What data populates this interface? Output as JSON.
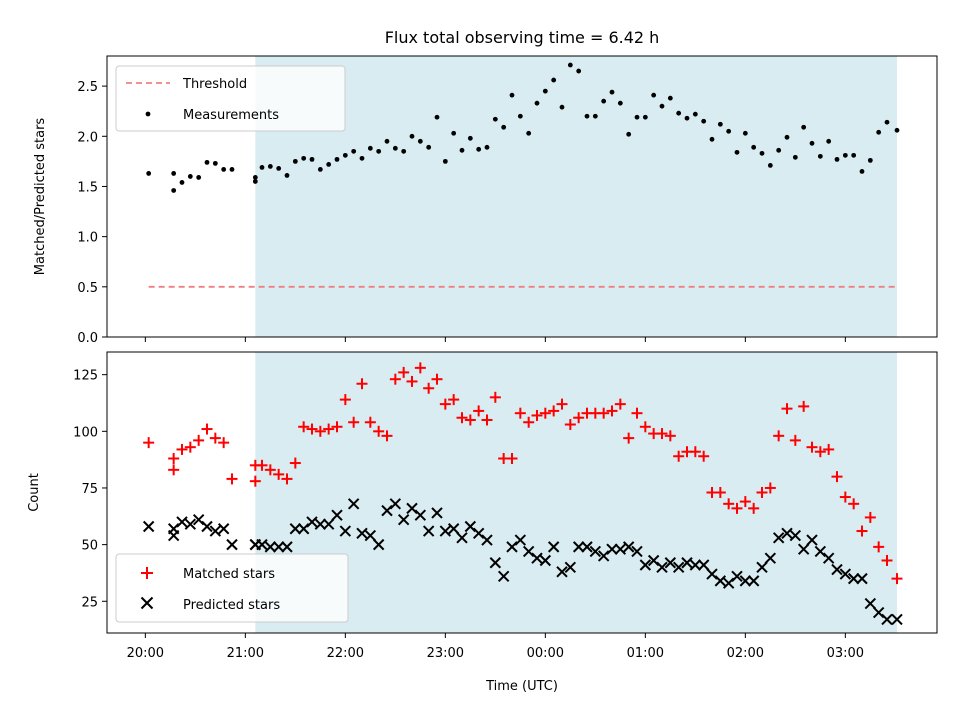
{
  "chart_data": [
    {
      "type": "scatter",
      "title": "Flux total observing time = 6.42 h",
      "ylabel": "Matched/Predicted stars",
      "xlim": [
        "19:37",
        "03:55"
      ],
      "ylim": [
        0,
        2.8
      ],
      "yticks": [
        0.0,
        0.5,
        1.0,
        1.5,
        2.0,
        2.5
      ],
      "ytick_labels": [
        "0.0",
        "0.5",
        "1.0",
        "1.5",
        "2.0",
        "2.5"
      ],
      "shaded_span": {
        "start": "21:06",
        "end": "03:31",
        "color": "#d4eaf0"
      },
      "legend": {
        "position": "upper-left",
        "entries": [
          "Threshold",
          "Measurements"
        ]
      },
      "series": [
        {
          "name": "Threshold",
          "style": "dashed-line",
          "color": "#f08080",
          "x": [
            "20:02",
            "03:31"
          ],
          "y": [
            0.5,
            0.5
          ]
        },
        {
          "name": "Measurements",
          "style": "dot",
          "color": "#000000",
          "x": [
            "20:02",
            "20:17",
            "20:17",
            "20:22",
            "20:27",
            "20:32",
            "20:37",
            "20:42",
            "20:47",
            "20:52",
            "21:06",
            "21:06",
            "21:10",
            "21:15",
            "21:20",
            "21:25",
            "21:30",
            "21:35",
            "21:40",
            "21:45",
            "21:50",
            "21:55",
            "22:00",
            "22:05",
            "22:10",
            "22:15",
            "22:20",
            "22:25",
            "22:30",
            "22:35",
            "22:40",
            "22:45",
            "22:50",
            "22:55",
            "23:00",
            "23:05",
            "23:10",
            "23:15",
            "23:20",
            "23:25",
            "23:30",
            "23:35",
            "23:40",
            "23:45",
            "23:50",
            "23:55",
            "00:00",
            "00:05",
            "00:10",
            "00:15",
            "00:20",
            "00:25",
            "00:30",
            "00:35",
            "00:40",
            "00:45",
            "00:50",
            "00:55",
            "01:00",
            "01:05",
            "01:10",
            "01:15",
            "01:20",
            "01:25",
            "01:30",
            "01:35",
            "01:40",
            "01:45",
            "01:50",
            "01:55",
            "02:00",
            "02:05",
            "02:10",
            "02:15",
            "02:20",
            "02:25",
            "02:30",
            "02:35",
            "02:40",
            "02:45",
            "02:50",
            "02:55",
            "03:00",
            "03:05",
            "03:10",
            "03:15",
            "03:20",
            "03:25",
            "03:31"
          ],
          "y": [
            1.63,
            1.63,
            1.46,
            1.54,
            1.6,
            1.59,
            1.74,
            1.73,
            1.67,
            1.67,
            1.55,
            1.59,
            1.69,
            1.7,
            1.68,
            1.61,
            1.75,
            1.78,
            1.77,
            1.67,
            1.72,
            1.77,
            1.81,
            1.85,
            1.78,
            1.88,
            1.85,
            1.95,
            1.88,
            1.85,
            2.0,
            1.95,
            1.89,
            2.19,
            1.75,
            2.03,
            1.86,
            1.98,
            1.87,
            1.89,
            2.17,
            2.09,
            2.41,
            2.2,
            2.03,
            2.33,
            2.45,
            2.56,
            2.29,
            2.71,
            2.65,
            2.2,
            2.2,
            2.35,
            2.44,
            2.33,
            2.02,
            2.19,
            2.19,
            2.41,
            2.3,
            2.38,
            2.23,
            2.18,
            2.22,
            2.15,
            1.97,
            2.12,
            2.05,
            1.84,
            2.03,
            1.89,
            1.83,
            1.71,
            1.86,
            1.99,
            1.79,
            2.09,
            1.93,
            1.8,
            1.95,
            1.77,
            1.81,
            1.81,
            1.65,
            1.76,
            2.04,
            2.14,
            2.06
          ]
        }
      ]
    },
    {
      "type": "scatter",
      "xlabel": "Time (UTC)",
      "ylabel": "Count",
      "xlim": [
        "19:37",
        "03:55"
      ],
      "ylim": [
        11,
        135
      ],
      "yticks": [
        25,
        50,
        75,
        100,
        125
      ],
      "ytick_labels": [
        "25",
        "50",
        "75",
        "100",
        "125"
      ],
      "xticks": [
        "20:00",
        "21:00",
        "22:00",
        "23:00",
        "00:00",
        "01:00",
        "02:00",
        "03:00"
      ],
      "shaded_span": {
        "start": "21:06",
        "end": "03:31",
        "color": "#d4eaf0"
      },
      "legend": {
        "position": "lower-left",
        "entries": [
          "Matched stars",
          "Predicted stars"
        ]
      },
      "series": [
        {
          "name": "Matched stars",
          "marker": "plus",
          "color": "#ff0000",
          "x": [
            "20:02",
            "20:17",
            "20:17",
            "20:22",
            "20:27",
            "20:32",
            "20:37",
            "20:42",
            "20:47",
            "20:52",
            "21:06",
            "21:06",
            "21:10",
            "21:15",
            "21:20",
            "21:25",
            "21:30",
            "21:35",
            "21:40",
            "21:45",
            "21:50",
            "21:55",
            "22:00",
            "22:05",
            "22:10",
            "22:15",
            "22:20",
            "22:25",
            "22:30",
            "22:35",
            "22:40",
            "22:45",
            "22:50",
            "22:55",
            "23:00",
            "23:05",
            "23:10",
            "23:15",
            "23:20",
            "23:25",
            "23:30",
            "23:35",
            "23:40",
            "23:45",
            "23:50",
            "23:55",
            "00:00",
            "00:05",
            "00:10",
            "00:15",
            "00:20",
            "00:25",
            "00:30",
            "00:35",
            "00:40",
            "00:45",
            "00:50",
            "00:55",
            "01:00",
            "01:05",
            "01:10",
            "01:15",
            "01:20",
            "01:25",
            "01:30",
            "01:35",
            "01:40",
            "01:45",
            "01:50",
            "01:55",
            "02:00",
            "02:05",
            "02:10",
            "02:15",
            "02:20",
            "02:25",
            "02:30",
            "02:35",
            "02:40",
            "02:45",
            "02:50",
            "02:55",
            "03:00",
            "03:05",
            "03:10",
            "03:15",
            "03:20",
            "03:25",
            "03:31"
          ],
          "y": [
            95,
            88,
            83,
            92,
            93,
            96,
            101,
            97,
            95,
            79,
            78,
            85,
            85,
            83,
            81,
            79,
            86,
            102,
            101,
            100,
            101,
            102,
            114,
            104,
            121,
            104,
            100,
            98,
            123,
            126,
            122,
            128,
            119,
            123,
            112,
            114,
            106,
            105,
            109,
            105,
            115,
            88,
            88,
            108,
            104,
            107,
            108,
            109,
            112,
            103,
            106,
            108,
            108,
            108,
            109,
            112,
            97,
            108,
            102,
            99,
            99,
            98,
            89,
            91,
            91,
            89,
            73,
            73,
            68,
            66,
            69,
            66,
            73,
            75,
            98,
            110,
            96,
            111,
            93,
            91,
            92,
            80,
            71,
            68,
            56,
            62,
            49,
            43,
            35
          ]
        },
        {
          "name": "Predicted stars",
          "marker": "x",
          "color": "#000000",
          "x": [
            "20:02",
            "20:17",
            "20:17",
            "20:22",
            "20:27",
            "20:32",
            "20:37",
            "20:42",
            "20:47",
            "20:52",
            "21:06",
            "21:06",
            "21:10",
            "21:15",
            "21:20",
            "21:25",
            "21:30",
            "21:35",
            "21:40",
            "21:45",
            "21:50",
            "21:55",
            "22:00",
            "22:05",
            "22:10",
            "22:15",
            "22:20",
            "22:25",
            "22:30",
            "22:35",
            "22:40",
            "22:45",
            "22:50",
            "22:55",
            "23:00",
            "23:05",
            "23:10",
            "23:15",
            "23:20",
            "23:25",
            "23:30",
            "23:35",
            "23:40",
            "23:45",
            "23:50",
            "23:55",
            "00:00",
            "00:05",
            "00:10",
            "00:15",
            "00:20",
            "00:25",
            "00:30",
            "00:35",
            "00:40",
            "00:45",
            "00:50",
            "00:55",
            "01:00",
            "01:05",
            "01:10",
            "01:15",
            "01:20",
            "01:25",
            "01:30",
            "01:35",
            "01:40",
            "01:45",
            "01:50",
            "01:55",
            "02:00",
            "02:05",
            "02:10",
            "02:15",
            "02:20",
            "02:25",
            "02:30",
            "02:35",
            "02:40",
            "02:45",
            "02:50",
            "02:55",
            "03:00",
            "03:05",
            "03:10",
            "03:15",
            "03:20",
            "03:25",
            "03:31"
          ],
          "y": [
            58,
            57,
            54,
            60,
            59,
            61,
            58,
            56,
            57,
            50,
            50,
            50,
            50,
            49,
            49,
            49,
            57,
            57,
            60,
            59,
            59,
            63,
            56,
            68,
            55,
            54,
            50,
            65,
            68,
            61,
            66,
            63,
            56,
            64,
            56,
            57,
            53,
            58,
            55,
            52,
            42,
            36,
            49,
            52,
            47,
            44,
            43,
            49,
            38,
            40,
            49,
            49,
            47,
            45,
            48,
            48,
            49,
            47,
            41,
            43,
            40,
            42,
            40,
            42,
            41,
            41,
            37,
            34,
            33,
            36,
            34,
            34,
            40,
            44,
            53,
            55,
            54,
            48,
            52,
            47,
            44,
            39,
            37,
            35,
            35,
            24,
            20,
            17,
            17
          ]
        }
      ]
    }
  ]
}
